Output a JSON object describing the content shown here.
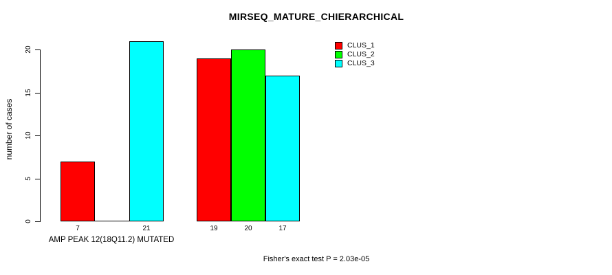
{
  "chart_data": {
    "type": "bar",
    "title": "MIRSEQ_MATURE_CHIERARCHICAL",
    "ylabel": "number of cases",
    "xlabel": "",
    "ylim": [
      0,
      21
    ],
    "yticks": [
      0,
      5,
      10,
      15,
      20
    ],
    "grid": false,
    "legend_position": "top-right",
    "series": [
      {
        "name": "CLUS_1",
        "color": "#FF0000",
        "values": [
          7,
          19
        ]
      },
      {
        "name": "CLUS_2",
        "color": "#00FF00",
        "values": [
          0,
          20
        ]
      },
      {
        "name": "CLUS_3",
        "color": "#00FFFF",
        "values": [
          21,
          17
        ]
      }
    ],
    "categories": [
      "AMP PEAK 12(18Q11.2) MUTATED",
      ""
    ],
    "bar_value_labels": [
      [
        "7",
        "",
        "21"
      ],
      [
        "19",
        "20",
        "17"
      ]
    ],
    "annotation": "Fisher's exact test P = 2.03e-05"
  },
  "colors": {
    "clus_1": "#FF0000",
    "clus_2": "#00FF00",
    "clus_3": "#00FFFF",
    "axis": "#000000",
    "background": "#FFFFFF"
  }
}
